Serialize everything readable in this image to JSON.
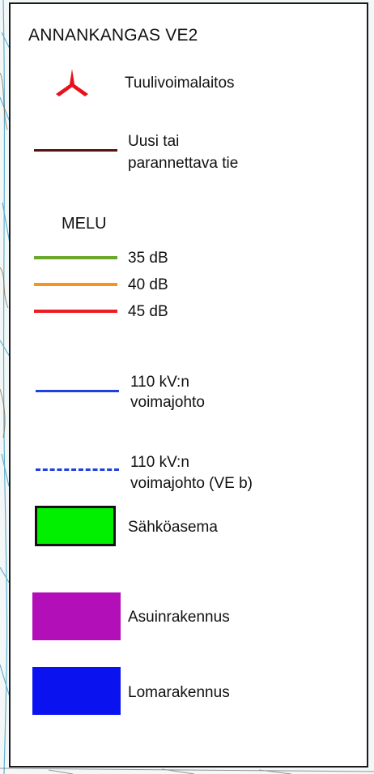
{
  "legend": {
    "title": "ANNANKANGAS VE2",
    "turbine": {
      "label": "Tuulivoimalaitos",
      "icon": "wind-turbine-icon",
      "color": "#e8101a"
    },
    "road": {
      "label_line1": "Uusi tai",
      "label_line2": "parannettava tie",
      "color": "#5a1010"
    },
    "noise": {
      "heading": "MELU",
      "levels": [
        {
          "label": "35 dB",
          "color": "#6aa82b"
        },
        {
          "label": "40 dB",
          "color": "#f7941d"
        },
        {
          "label": "45 dB",
          "color": "#ed1c24"
        }
      ]
    },
    "power_line": {
      "label_line1": "110 kV:n",
      "label_line2": "voimajohto",
      "color": "#1f3fe0"
    },
    "power_line_alt": {
      "label_line1": "110 kV:n",
      "label_line2": "voimajohto (VE b)",
      "color": "#1f3fe0"
    },
    "substation": {
      "label": "Sähköasema",
      "fill": "#00f000",
      "border": "#111111"
    },
    "residential": {
      "label": "Asuinrakennus",
      "fill": "#b20fb8"
    },
    "holiday": {
      "label": "Lomarakennus",
      "fill": "#0a12f0"
    }
  }
}
